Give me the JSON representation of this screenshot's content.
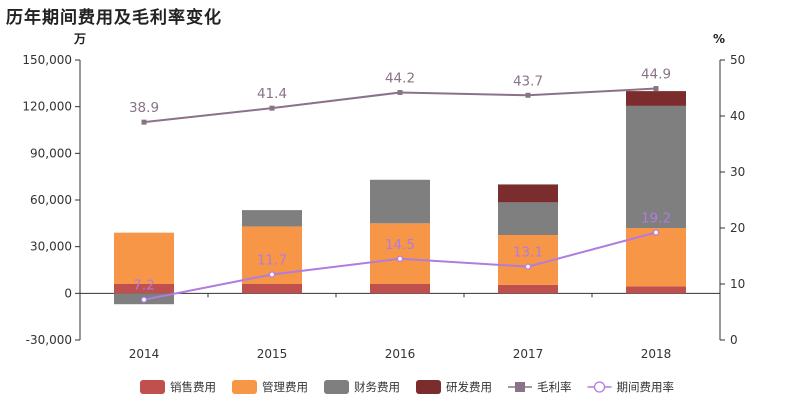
{
  "title": "历年期间费用及毛利率变化",
  "chart_data": {
    "type": "bar",
    "stacked": true,
    "categories": [
      "2014",
      "2015",
      "2016",
      "2017",
      "2018"
    ],
    "y_left": {
      "unit": "万",
      "ylim": [
        -30000,
        150000
      ],
      "ticks": [
        "-30,000",
        "0",
        "30,000",
        "60,000",
        "90,000",
        "120,000",
        "150,000"
      ]
    },
    "y_right": {
      "unit": "%",
      "ylim": [
        0,
        50
      ],
      "ticks": [
        "0",
        "10",
        "20",
        "30",
        "40",
        "50"
      ]
    },
    "series": [
      {
        "name": "销售费用",
        "type": "bar",
        "color": "#c0504d",
        "values": [
          6000,
          6000,
          6000,
          5500,
          4500
        ]
      },
      {
        "name": "管理费用",
        "type": "bar",
        "color": "#f79646",
        "values": [
          33000,
          37000,
          39000,
          32000,
          37500
        ]
      },
      {
        "name": "财务费用",
        "type": "bar",
        "color": "#7f7f7f",
        "values": [
          -7000,
          10500,
          28000,
          21000,
          78500
        ]
      },
      {
        "name": "研发费用",
        "type": "bar",
        "color": "#7b2c2c",
        "values": [
          0,
          0,
          0,
          11500,
          9500
        ]
      },
      {
        "name": "毛利率",
        "type": "line",
        "axis": "right",
        "color": "#8a7389",
        "marker": "square",
        "values": [
          38.9,
          41.4,
          44.2,
          43.7,
          44.9
        ],
        "labels": [
          "38.9",
          "41.4",
          "44.2",
          "43.7",
          "44.9"
        ]
      },
      {
        "name": "期间费用率",
        "type": "line",
        "axis": "right",
        "color": "#b07ce0",
        "marker": "circle",
        "values": [
          7.2,
          11.7,
          14.5,
          13.1,
          19.2
        ],
        "labels": [
          "7.2",
          "11.7",
          "14.5",
          "13.1",
          "19.2"
        ]
      }
    ],
    "grid": false,
    "legend_position": "bottom"
  }
}
